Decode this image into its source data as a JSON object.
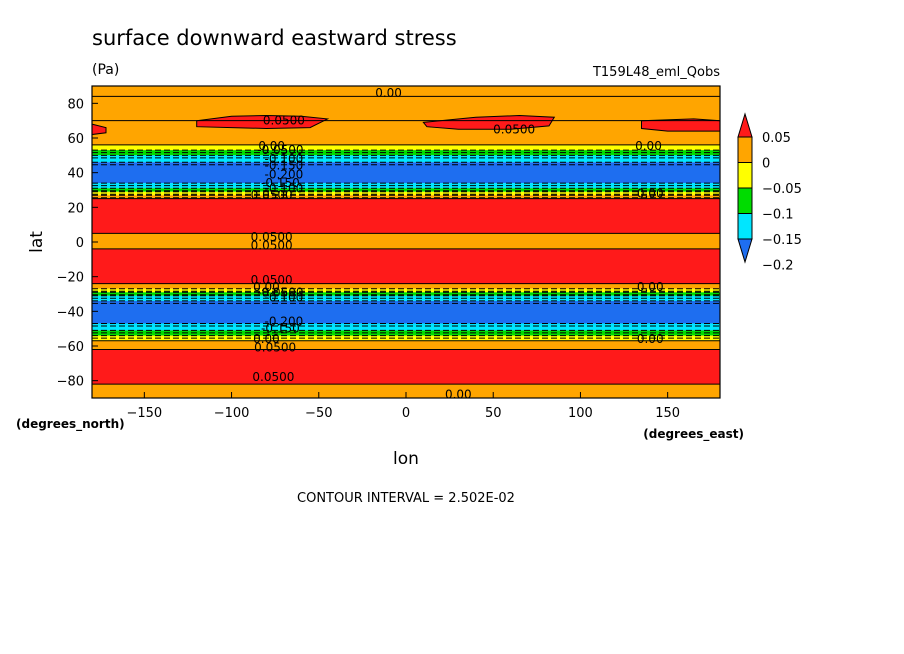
{
  "chart_data": {
    "type": "heatmap",
    "title": "surface downward eastward stress",
    "units": "(Pa)",
    "dataset": "T159L48_eml_Qobs",
    "xlabel": "lon",
    "ylabel": "lat",
    "x_units": "(degrees_east)",
    "y_units": "(degrees_north)",
    "footer": "CONTOUR INTERVAL = 2.502E-02",
    "xlim": [
      -180,
      180
    ],
    "ylim": [
      -90,
      90
    ],
    "x_ticks": [
      -150,
      -100,
      -50,
      0,
      50,
      100,
      150
    ],
    "y_ticks": [
      80,
      60,
      40,
      20,
      0,
      -20,
      -40,
      -60,
      -80
    ],
    "colorbar": {
      "colors": [
        "#1e6ef0",
        "#00e6ff",
        "#00dc00",
        "#ffff00",
        "#ffa500",
        "#ff1a1a"
      ],
      "labels": [
        "0.05",
        "0",
        "-0.05",
        "-0.1",
        "-0.15",
        "-0.2"
      ]
    },
    "bands": [
      {
        "from": 90,
        "to": 84,
        "color": "#ffa500"
      },
      {
        "from": 84,
        "to": 70,
        "color": "#ffa500"
      },
      {
        "from": 70,
        "to": 56,
        "color": "#ffa500"
      },
      {
        "from": 56,
        "to": 53,
        "color": "#ffff00"
      },
      {
        "from": 53,
        "to": 50,
        "color": "#00dc00"
      },
      {
        "from": 50,
        "to": 46,
        "color": "#00e6ff"
      },
      {
        "from": 46,
        "to": 34,
        "color": "#1e6ef0"
      },
      {
        "from": 34,
        "to": 31,
        "color": "#00e6ff"
      },
      {
        "from": 31,
        "to": 29,
        "color": "#00dc00"
      },
      {
        "from": 29,
        "to": 27,
        "color": "#ffff00"
      },
      {
        "from": 27,
        "to": 25,
        "color": "#ffa500"
      },
      {
        "from": 25,
        "to": 5,
        "color": "#ff1a1a"
      },
      {
        "from": 5,
        "to": -4,
        "color": "#ffa500"
      },
      {
        "from": -4,
        "to": -24,
        "color": "#ff1a1a"
      },
      {
        "from": -24,
        "to": -27,
        "color": "#ffa500"
      },
      {
        "from": -27,
        "to": -29,
        "color": "#ffff00"
      },
      {
        "from": -29,
        "to": -31,
        "color": "#00dc00"
      },
      {
        "from": -31,
        "to": -34,
        "color": "#00e6ff"
      },
      {
        "from": -34,
        "to": -47,
        "color": "#1e6ef0"
      },
      {
        "from": -47,
        "to": -51,
        "color": "#00e6ff"
      },
      {
        "from": -51,
        "to": -54,
        "color": "#00dc00"
      },
      {
        "from": -54,
        "to": -57,
        "color": "#ffff00"
      },
      {
        "from": -57,
        "to": -62,
        "color": "#ffa500"
      },
      {
        "from": -62,
        "to": -82,
        "color": "#ff1a1a"
      },
      {
        "from": -82,
        "to": -90,
        "color": "#ffa500"
      }
    ],
    "patches": [
      {
        "color": "#ff1a1a",
        "pts": [
          [
            -120,
            70
          ],
          [
            -100,
            72.5
          ],
          [
            -80,
            73
          ],
          [
            -60,
            72.5
          ],
          [
            -45,
            71
          ],
          [
            -55,
            66
          ],
          [
            -80,
            65.5
          ],
          [
            -100,
            66
          ],
          [
            -120,
            66.5
          ]
        ]
      },
      {
        "color": "#ff1a1a",
        "pts": [
          [
            10,
            69
          ],
          [
            40,
            72
          ],
          [
            65,
            73
          ],
          [
            85,
            72
          ],
          [
            82,
            67
          ],
          [
            60,
            65
          ],
          [
            30,
            65
          ],
          [
            12,
            66.5
          ]
        ]
      },
      {
        "color": "#ff1a1a",
        "pts": [
          [
            135,
            70
          ],
          [
            165,
            71
          ],
          [
            180,
            70
          ],
          [
            180,
            64
          ],
          [
            150,
            64
          ],
          [
            135,
            65.5
          ]
        ]
      },
      {
        "color": "#ff1a1a",
        "pts": [
          [
            -180,
            68
          ],
          [
            -172,
            66
          ],
          [
            -172,
            63
          ],
          [
            -180,
            62
          ]
        ]
      }
    ],
    "contour_labels": [
      {
        "text": "0.00",
        "x": -10,
        "y": 86
      },
      {
        "text": "0.0500",
        "x": -70,
        "y": 70
      },
      {
        "text": "0.0500",
        "x": 62,
        "y": 65
      },
      {
        "text": "0.00",
        "x": -77,
        "y": 55.5
      },
      {
        "text": "0.00",
        "x": 139,
        "y": 55.5
      },
      {
        "text": "-0.0500",
        "x": -72,
        "y": 53
      },
      {
        "text": "-0.100",
        "x": -70,
        "y": 48
      },
      {
        "text": "-0.150",
        "x": -70,
        "y": 44
      },
      {
        "text": "-0.200",
        "x": -70,
        "y": 39
      },
      {
        "text": "-0.150",
        "x": -72,
        "y": 34
      },
      {
        "text": "-0.100",
        "x": -70,
        "y": 31
      },
      {
        "text": "0.0500",
        "x": -77,
        "y": 27
      },
      {
        "text": "0.00",
        "x": 140,
        "y": 28
      },
      {
        "text": "0.0500",
        "x": -77,
        "y": 3
      },
      {
        "text": "0.0500",
        "x": -77,
        "y": -2
      },
      {
        "text": "0.0500",
        "x": -77,
        "y": -22
      },
      {
        "text": "0.00",
        "x": -80,
        "y": -26
      },
      {
        "text": "0.00",
        "x": 140,
        "y": -26
      },
      {
        "text": "-0.0500",
        "x": -72,
        "y": -29
      },
      {
        "text": "-0.100",
        "x": -70,
        "y": -32
      },
      {
        "text": "-0.200",
        "x": -70,
        "y": -46
      },
      {
        "text": "-0.150",
        "x": -72,
        "y": -50
      },
      {
        "text": "0.00",
        "x": -80,
        "y": -56
      },
      {
        "text": "0.00",
        "x": 140,
        "y": -56
      },
      {
        "text": "0.0500",
        "x": -75,
        "y": -61
      },
      {
        "text": "0.0500",
        "x": -76,
        "y": -78
      },
      {
        "text": "0.00",
        "x": 30,
        "y": -88
      }
    ]
  }
}
